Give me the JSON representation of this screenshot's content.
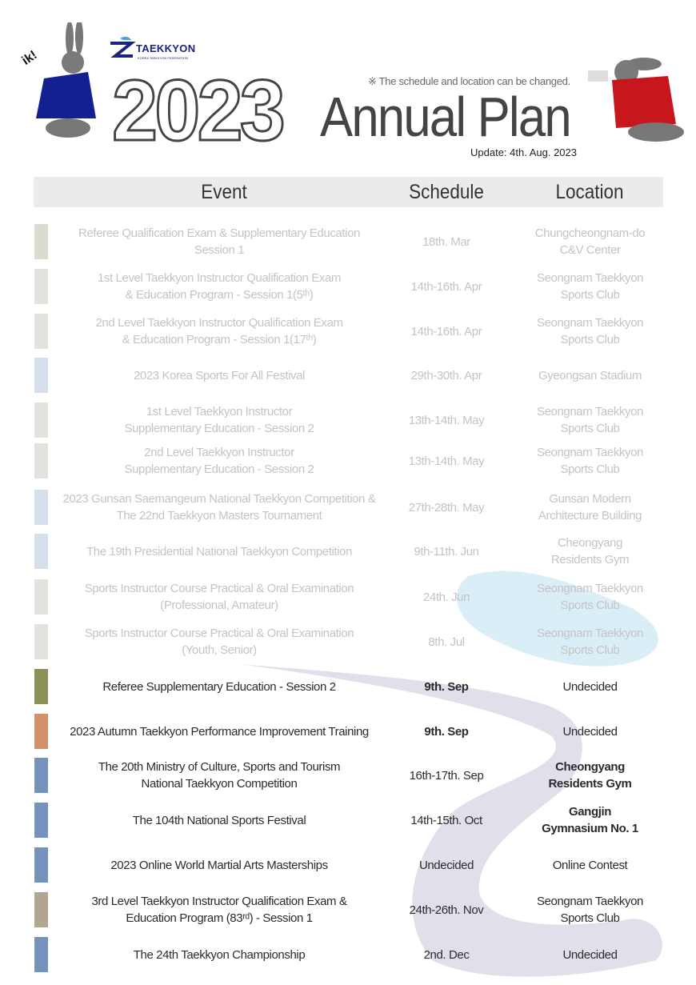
{
  "header": {
    "logo_text": "TAEKKYON",
    "logo_subtext": "KOREA TAEKKYON FEDERATION",
    "exclamation": "ik!",
    "year": "2023",
    "title": "Annual Plan",
    "note": "※ The schedule and location can be changed.",
    "update": "Update: 4th. Aug. 2023"
  },
  "table": {
    "columns": [
      "Event",
      "Schedule",
      "Location"
    ],
    "rows": [
      {
        "status": "past",
        "color": "#d9dccf",
        "event": [
          "Referee Qualification Exam & Supplementary Education",
          "Session 1"
        ],
        "schedule": [
          "18th. Mar"
        ],
        "location": [
          "Chungcheongnam-do",
          "C&V Center"
        ]
      },
      {
        "status": "past",
        "color": "#e4e2dd",
        "event": [
          "1st Level Taekkyon Instructor Qualification Exam",
          "& Education Program - Session 1(5ᵗʰ)"
        ],
        "schedule": [
          "14th-16th. Apr"
        ],
        "location": [
          "Seongnam Taekkyon",
          "Sports Club"
        ]
      },
      {
        "status": "past",
        "color": "#e4e2dd",
        "event": [
          "2nd Level Taekkyon Instructor Qualification Exam",
          "& Education Program - Session 1(17ᵗʰ)"
        ],
        "schedule": [
          "14th-16th. Apr"
        ],
        "location": [
          "Seongnam Taekkyon",
          "Sports Club"
        ]
      },
      {
        "status": "past",
        "color": "#d5deea",
        "event": [
          "2023 Korea Sports For All Festival"
        ],
        "schedule": [
          "29th-30th. Apr"
        ],
        "location": [
          "Gyeongsan Stadium"
        ]
      },
      {
        "status": "past",
        "color": "#e4e2dd",
        "event": [
          "1st Level Taekkyon Instructor",
          "Supplementary Education - Session 2"
        ],
        "schedule": [
          "13th-14th. May"
        ],
        "location": [
          "Seongnam Taekkyon",
          "Sports Club"
        ]
      },
      {
        "status": "past",
        "color": "#e4e2dd",
        "event": [
          "2nd Level Taekkyon Instructor",
          "Supplementary Education - Session 2"
        ],
        "schedule": [
          "13th-14th. May"
        ],
        "location": [
          "Seongnam Taekkyon",
          "Sports Club"
        ]
      },
      {
        "status": "past",
        "color": "#d5deea",
        "event": [
          "2023 Gunsan Saemangeum National Taekkyon Competition &",
          "The 22nd Taekkyon Masters Tournament"
        ],
        "schedule": [
          "27th-28th. May"
        ],
        "location": [
          "Gunsan Modern",
          "Architecture Building"
        ]
      },
      {
        "status": "past",
        "color": "#d5deea",
        "event": [
          "The 19th Presidential National Taekkyon Competition"
        ],
        "schedule": [
          "9th-11th. Jun"
        ],
        "location": [
          "Cheongyang",
          "Residents Gym"
        ]
      },
      {
        "status": "past",
        "color": "#e4e2dd",
        "event": [
          "Sports Instructor Course Practical & Oral Examination",
          "(Professional, Amateur)"
        ],
        "schedule": [
          "24th. Jun"
        ],
        "location": [
          "Seongnam Taekkyon",
          "Sports Club"
        ]
      },
      {
        "status": "past",
        "color": "#e4e2dd",
        "event": [
          "Sports Instructor Course Practical & Oral Examination",
          "(Youth, Senior)"
        ],
        "schedule": [
          "8th. Jul"
        ],
        "location": [
          "Seongnam Taekkyon",
          "Sports Club"
        ]
      },
      {
        "status": "future",
        "color": "#8c9059",
        "event": [
          "Referee Supplementary Education - Session 2"
        ],
        "schedule": [
          "9th. Sep"
        ],
        "schedule_bold": true,
        "location": [
          "Undecided"
        ]
      },
      {
        "status": "future",
        "color": "#d48f6b",
        "event": [
          "2023 Autumn Taekkyon Performance Improvement Training"
        ],
        "schedule": [
          "9th. Sep"
        ],
        "schedule_bold": true,
        "location": [
          "Undecided"
        ]
      },
      {
        "status": "future",
        "color": "#7592bd",
        "event": [
          "The 20th Ministry of Culture, Sports and Tourism",
          "National Taekkyon Competition"
        ],
        "schedule": [
          "16th-17th. Sep"
        ],
        "location": [
          "Cheongyang",
          "Residents Gym"
        ],
        "location_bold": true
      },
      {
        "status": "future",
        "color": "#7592bd",
        "event": [
          "The 104th National Sports Festival"
        ],
        "schedule": [
          "14th-15th. Oct"
        ],
        "location": [
          "Gangjin",
          "Gymnasium No. 1"
        ],
        "location_bold": true
      },
      {
        "status": "future",
        "color": "#7592bd",
        "event": [
          "2023 Online World Martial Arts Masterships"
        ],
        "schedule": [
          "Undecided"
        ],
        "location": [
          "Online Contest"
        ]
      },
      {
        "status": "future",
        "color": "#b3a593",
        "event": [
          "3rd Level Taekkyon Instructor Qualification Exam &",
          "Education Program (83ʳᵈ) - Session 1"
        ],
        "schedule": [
          "24th-26th. Nov"
        ],
        "location": [
          "Seongnam Taekkyon",
          "Sports Club"
        ]
      },
      {
        "status": "future",
        "color": "#7592bd",
        "event": [
          "The 24th Taekkyon Championship"
        ],
        "schedule": [
          "2nd. Dec"
        ],
        "location": [
          "Undecided"
        ]
      }
    ]
  }
}
